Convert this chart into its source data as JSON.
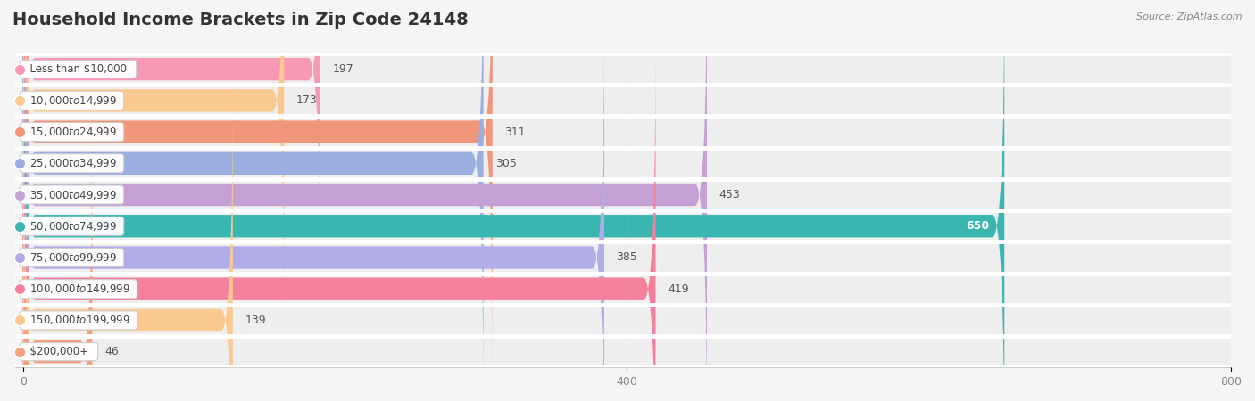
{
  "title": "Household Income Brackets in Zip Code 24148",
  "source": "Source: ZipAtlas.com",
  "categories": [
    "Less than $10,000",
    "$10,000 to $14,999",
    "$15,000 to $24,999",
    "$25,000 to $34,999",
    "$35,000 to $49,999",
    "$50,000 to $74,999",
    "$75,000 to $99,999",
    "$100,000 to $149,999",
    "$150,000 to $199,999",
    "$200,000+"
  ],
  "values": [
    197,
    173,
    311,
    305,
    453,
    650,
    385,
    419,
    139,
    46
  ],
  "bar_colors": [
    "#f799b4",
    "#fac990",
    "#f0967a",
    "#9aaee0",
    "#c4a0d4",
    "#3ab5b0",
    "#b0ace8",
    "#f5809e",
    "#fac990",
    "#f4a080"
  ],
  "xlim": [
    0,
    800
  ],
  "xticks": [
    0,
    400,
    800
  ],
  "background_color": "#f5f5f5",
  "row_bg_color": "#ececec",
  "row_alt_color": "#f5f5f5",
  "title_fontsize": 14,
  "bar_height": 0.72,
  "value_label_color_dark": "#555555",
  "value_label_color_light": "#ffffff"
}
